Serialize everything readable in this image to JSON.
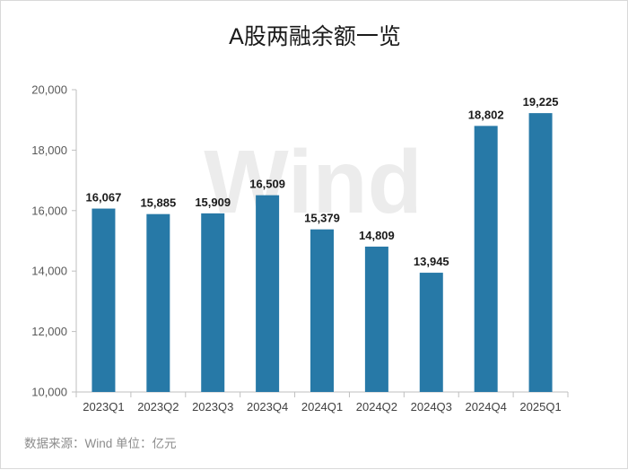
{
  "chart_data": {
    "type": "bar",
    "title": "A股两融余额一览",
    "categories": [
      "2023Q1",
      "2023Q2",
      "2023Q3",
      "2023Q4",
      "2024Q1",
      "2024Q2",
      "2024Q3",
      "2024Q4",
      "2025Q1"
    ],
    "values": [
      16067,
      15885,
      15909,
      16509,
      15379,
      14809,
      13945,
      18802,
      19225
    ],
    "value_labels": [
      "16,067",
      "15,885",
      "15,909",
      "16,509",
      "15,379",
      "14,809",
      "13,945",
      "18,802",
      "19,225"
    ],
    "ylim": [
      10000,
      20000
    ],
    "yticks": [
      10000,
      12000,
      14000,
      16000,
      18000,
      20000
    ],
    "ytick_labels": [
      "10,000",
      "12,000",
      "14,000",
      "16,000",
      "18,000",
      "20,000"
    ],
    "grid": false,
    "legend": "none",
    "bar_color": "#2779a7",
    "source_note": "数据来源：Wind 单位：亿元",
    "watermark": "Wind"
  }
}
